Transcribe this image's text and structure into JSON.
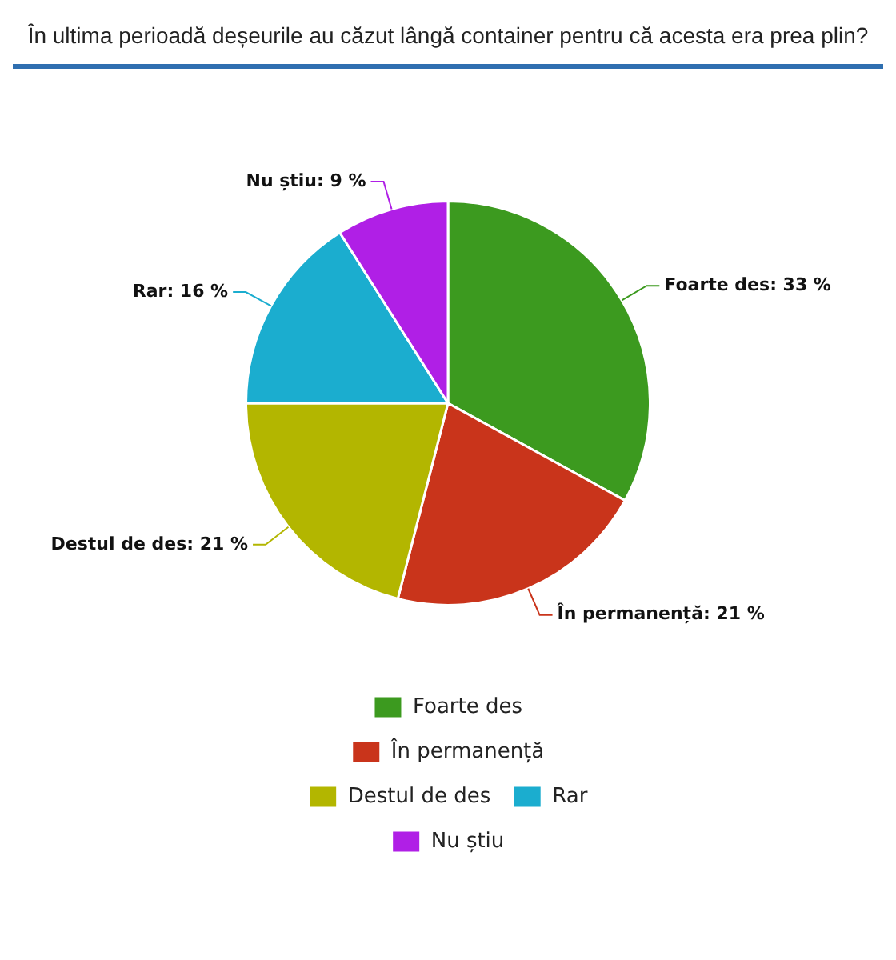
{
  "chart_data": {
    "type": "pie",
    "title": "În ultima perioadă deșeurile au căzut lângă container pentru că acesta era prea plin?",
    "categories": [
      "Foarte des",
      "În permanență",
      "Destul de des",
      "Rar",
      "Nu știu"
    ],
    "values": [
      33,
      21,
      21,
      16,
      9
    ],
    "colors": [
      "#3c9a1f",
      "#c9341b",
      "#b3b600",
      "#1badcf",
      "#b01fe6"
    ],
    "value_labels": [
      "Foarte des: 33 %",
      "În permanență: 21 %",
      "Destul de des: 21 %",
      "Rar: 16 %",
      "Nu știu: 9 %"
    ],
    "legend": "bottom"
  }
}
